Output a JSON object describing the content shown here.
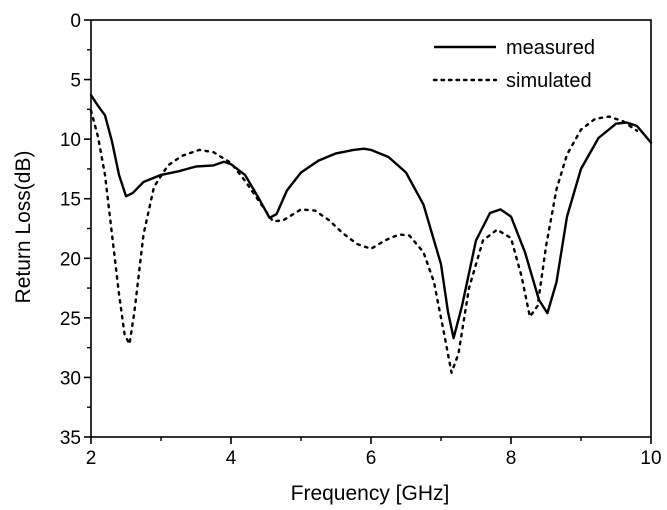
{
  "chart_data": {
    "type": "line",
    "title": "",
    "xlabel": "Frequency [GHz]",
    "ylabel": "Return Loss(dB)",
    "xlim": [
      2,
      10
    ],
    "ylim": [
      0,
      35
    ],
    "y_inverted": true,
    "x_ticks": [
      2,
      4,
      6,
      8,
      10
    ],
    "y_ticks": [
      0,
      5,
      10,
      15,
      20,
      25,
      30,
      35
    ],
    "grid": false,
    "legend_position": "top-right",
    "series": [
      {
        "name": "measured",
        "line_style": "solid",
        "color": "#000000",
        "points": [
          [
            2.0,
            6.3
          ],
          [
            2.1,
            7.2
          ],
          [
            2.2,
            8.0
          ],
          [
            2.3,
            10.2
          ],
          [
            2.4,
            13.0
          ],
          [
            2.5,
            14.8
          ],
          [
            2.6,
            14.5
          ],
          [
            2.75,
            13.6
          ],
          [
            3.0,
            13.0
          ],
          [
            3.25,
            12.7
          ],
          [
            3.5,
            12.3
          ],
          [
            3.75,
            12.2
          ],
          [
            3.9,
            11.9
          ],
          [
            4.0,
            12.1
          ],
          [
            4.2,
            13.0
          ],
          [
            4.4,
            15.0
          ],
          [
            4.55,
            16.6
          ],
          [
            4.65,
            16.3
          ],
          [
            4.8,
            14.3
          ],
          [
            5.0,
            12.8
          ],
          [
            5.25,
            11.8
          ],
          [
            5.5,
            11.2
          ],
          [
            5.75,
            10.9
          ],
          [
            5.9,
            10.8
          ],
          [
            6.0,
            10.9
          ],
          [
            6.25,
            11.5
          ],
          [
            6.5,
            12.8
          ],
          [
            6.75,
            15.5
          ],
          [
            7.0,
            20.5
          ],
          [
            7.1,
            24.5
          ],
          [
            7.18,
            26.7
          ],
          [
            7.3,
            24.0
          ],
          [
            7.5,
            18.5
          ],
          [
            7.7,
            16.2
          ],
          [
            7.85,
            15.9
          ],
          [
            8.0,
            16.5
          ],
          [
            8.2,
            19.5
          ],
          [
            8.4,
            23.5
          ],
          [
            8.52,
            24.6
          ],
          [
            8.65,
            22.0
          ],
          [
            8.8,
            16.5
          ],
          [
            9.0,
            12.5
          ],
          [
            9.25,
            9.9
          ],
          [
            9.5,
            8.7
          ],
          [
            9.65,
            8.6
          ],
          [
            9.8,
            8.9
          ],
          [
            10.0,
            10.3
          ]
        ]
      },
      {
        "name": "simulated",
        "line_style": "dotted",
        "color": "#000000",
        "points": [
          [
            2.0,
            7.6
          ],
          [
            2.1,
            9.8
          ],
          [
            2.2,
            13.0
          ],
          [
            2.3,
            18.0
          ],
          [
            2.4,
            23.0
          ],
          [
            2.48,
            26.4
          ],
          [
            2.55,
            27.2
          ],
          [
            2.62,
            24.5
          ],
          [
            2.75,
            18.0
          ],
          [
            2.9,
            14.0
          ],
          [
            3.1,
            12.2
          ],
          [
            3.3,
            11.4
          ],
          [
            3.55,
            10.9
          ],
          [
            3.75,
            11.1
          ],
          [
            4.0,
            12.0
          ],
          [
            4.2,
            13.5
          ],
          [
            4.4,
            15.2
          ],
          [
            4.6,
            16.9
          ],
          [
            4.75,
            16.8
          ],
          [
            5.0,
            15.9
          ],
          [
            5.2,
            16.0
          ],
          [
            5.4,
            16.8
          ],
          [
            5.6,
            17.9
          ],
          [
            5.8,
            18.8
          ],
          [
            6.0,
            19.2
          ],
          [
            6.2,
            18.5
          ],
          [
            6.4,
            18.0
          ],
          [
            6.55,
            18.1
          ],
          [
            6.75,
            19.5
          ],
          [
            6.9,
            22.0
          ],
          [
            7.05,
            26.5
          ],
          [
            7.15,
            29.6
          ],
          [
            7.25,
            28.0
          ],
          [
            7.4,
            22.5
          ],
          [
            7.6,
            18.5
          ],
          [
            7.8,
            17.6
          ],
          [
            8.0,
            18.3
          ],
          [
            8.15,
            21.5
          ],
          [
            8.27,
            24.9
          ],
          [
            8.38,
            24.0
          ],
          [
            8.5,
            19.0
          ],
          [
            8.65,
            14.2
          ],
          [
            8.8,
            11.3
          ],
          [
            9.0,
            9.2
          ],
          [
            9.2,
            8.3
          ],
          [
            9.4,
            8.1
          ],
          [
            9.6,
            8.5
          ],
          [
            9.8,
            9.3
          ]
        ]
      }
    ]
  }
}
